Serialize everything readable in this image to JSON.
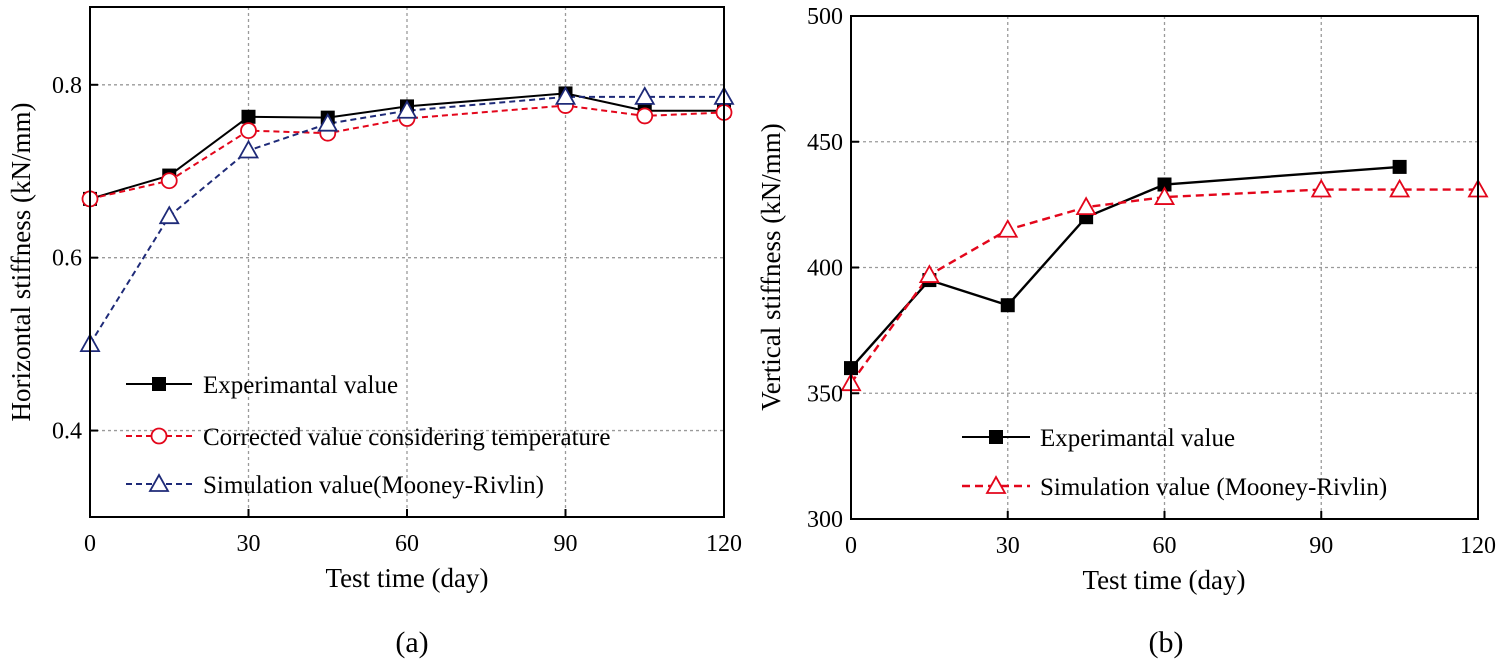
{
  "colors": {
    "experimental": "#000000",
    "corrected": "#e3061b",
    "simulation_a": "#1e2a78",
    "simulation_b": "#e3061b",
    "grid": "#9a9a9a"
  },
  "chart_data": [
    {
      "panel": "a",
      "type": "line",
      "caption": "(a)",
      "xlabel": "Test time (day)",
      "ylabel": "Horizontal stiffness (kN/mm)",
      "xlim": [
        0,
        120
      ],
      "ylim": [
        0.3,
        0.89
      ],
      "xticks": [
        0,
        30,
        60,
        90,
        120
      ],
      "yticks": [
        0.4,
        0.6,
        0.8
      ],
      "ytick_labels": [
        "0.4",
        "0.6",
        "0.8"
      ],
      "grid": true,
      "legend_position": "lower-center",
      "series": [
        {
          "name": "Experimantal value",
          "style": "solid",
          "marker": "square-filled",
          "x": [
            0,
            15,
            30,
            45,
            60,
            90,
            105,
            120
          ],
          "y": [
            0.668,
            0.695,
            0.763,
            0.762,
            0.775,
            0.79,
            0.77,
            0.77
          ]
        },
        {
          "name": "Corrected value considering temperature",
          "style": "dashed",
          "marker": "circle-open",
          "x": [
            0,
            15,
            30,
            45,
            60,
            90,
            105,
            120
          ],
          "y": [
            0.668,
            0.689,
            0.747,
            0.744,
            0.761,
            0.776,
            0.764,
            0.768
          ]
        },
        {
          "name": "Simulation value(Mooney-Rivlin)",
          "style": "dashed",
          "marker": "triangle-open",
          "x": [
            0,
            15,
            30,
            45,
            60,
            90,
            105,
            120
          ],
          "y": [
            0.5,
            0.648,
            0.724,
            0.755,
            0.77,
            0.786,
            0.786,
            0.786
          ]
        }
      ]
    },
    {
      "panel": "b",
      "type": "line",
      "caption": "(b)",
      "xlabel": "Test time  (day)",
      "ylabel": "Vertical stiffness (kN/mm)",
      "xlim": [
        0,
        120
      ],
      "ylim": [
        300,
        500
      ],
      "xticks": [
        0,
        30,
        60,
        90,
        120
      ],
      "yticks": [
        300,
        350,
        400,
        450,
        500
      ],
      "ytick_labels": [
        "300",
        "350",
        "400",
        "450",
        "500"
      ],
      "grid": true,
      "legend_position": "lower-right",
      "series": [
        {
          "name": "Experimantal value",
          "style": "solid",
          "marker": "square-filled",
          "x": [
            0,
            15,
            30,
            45,
            60,
            105
          ],
          "y": [
            360,
            395,
            385,
            420,
            433,
            440
          ]
        },
        {
          "name": "Simulation value (Mooney-Rivlin)",
          "style": "dashed",
          "marker": "triangle-open",
          "x": [
            0,
            15,
            30,
            45,
            60,
            90,
            105,
            120
          ],
          "y": [
            354,
            397,
            415,
            424,
            428,
            431,
            431,
            431
          ]
        }
      ]
    }
  ]
}
